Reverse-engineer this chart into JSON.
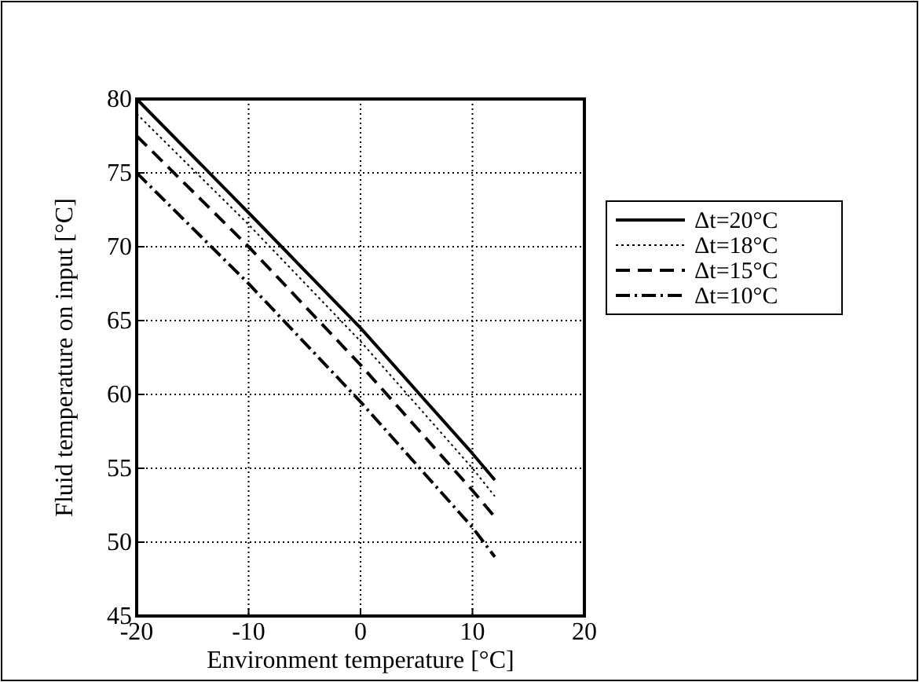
{
  "chart_data": {
    "type": "line",
    "xlabel": "Environment temperature [°C]",
    "ylabel": "Fluid temperature on input [°C]",
    "xlim": [
      -20,
      20
    ],
    "xticks": [
      -20,
      -10,
      0,
      10,
      20
    ],
    "ylim": [
      45,
      80
    ],
    "yticks": [
      45,
      50,
      55,
      60,
      65,
      70,
      75,
      80
    ],
    "grid": true,
    "legend": "right",
    "series": [
      {
        "name": "Δt=20°C",
        "color": "#000000",
        "line_style": "solid",
        "x": [
          -20,
          -10,
          0,
          10,
          12
        ],
        "values": [
          80,
          72.3,
          64.5,
          56,
          54.2
        ]
      },
      {
        "name": "Δt=18°C",
        "color": "#000000",
        "line_style": "dotted",
        "x": [
          -20,
          -10,
          0,
          10,
          12
        ],
        "values": [
          79,
          71.5,
          63.6,
          55,
          53.1
        ]
      },
      {
        "name": "Δt=15°C",
        "color": "#000000",
        "line_style": "dashed",
        "x": [
          -20,
          -10,
          0,
          10,
          12
        ],
        "values": [
          77.5,
          70,
          62,
          53.5,
          51.7
        ]
      },
      {
        "name": "Δt=10°C",
        "color": "#000000",
        "line_style": "dashdot",
        "x": [
          -20,
          -10,
          0,
          10,
          12
        ],
        "values": [
          75,
          67.5,
          59.5,
          51,
          49
        ]
      }
    ]
  }
}
